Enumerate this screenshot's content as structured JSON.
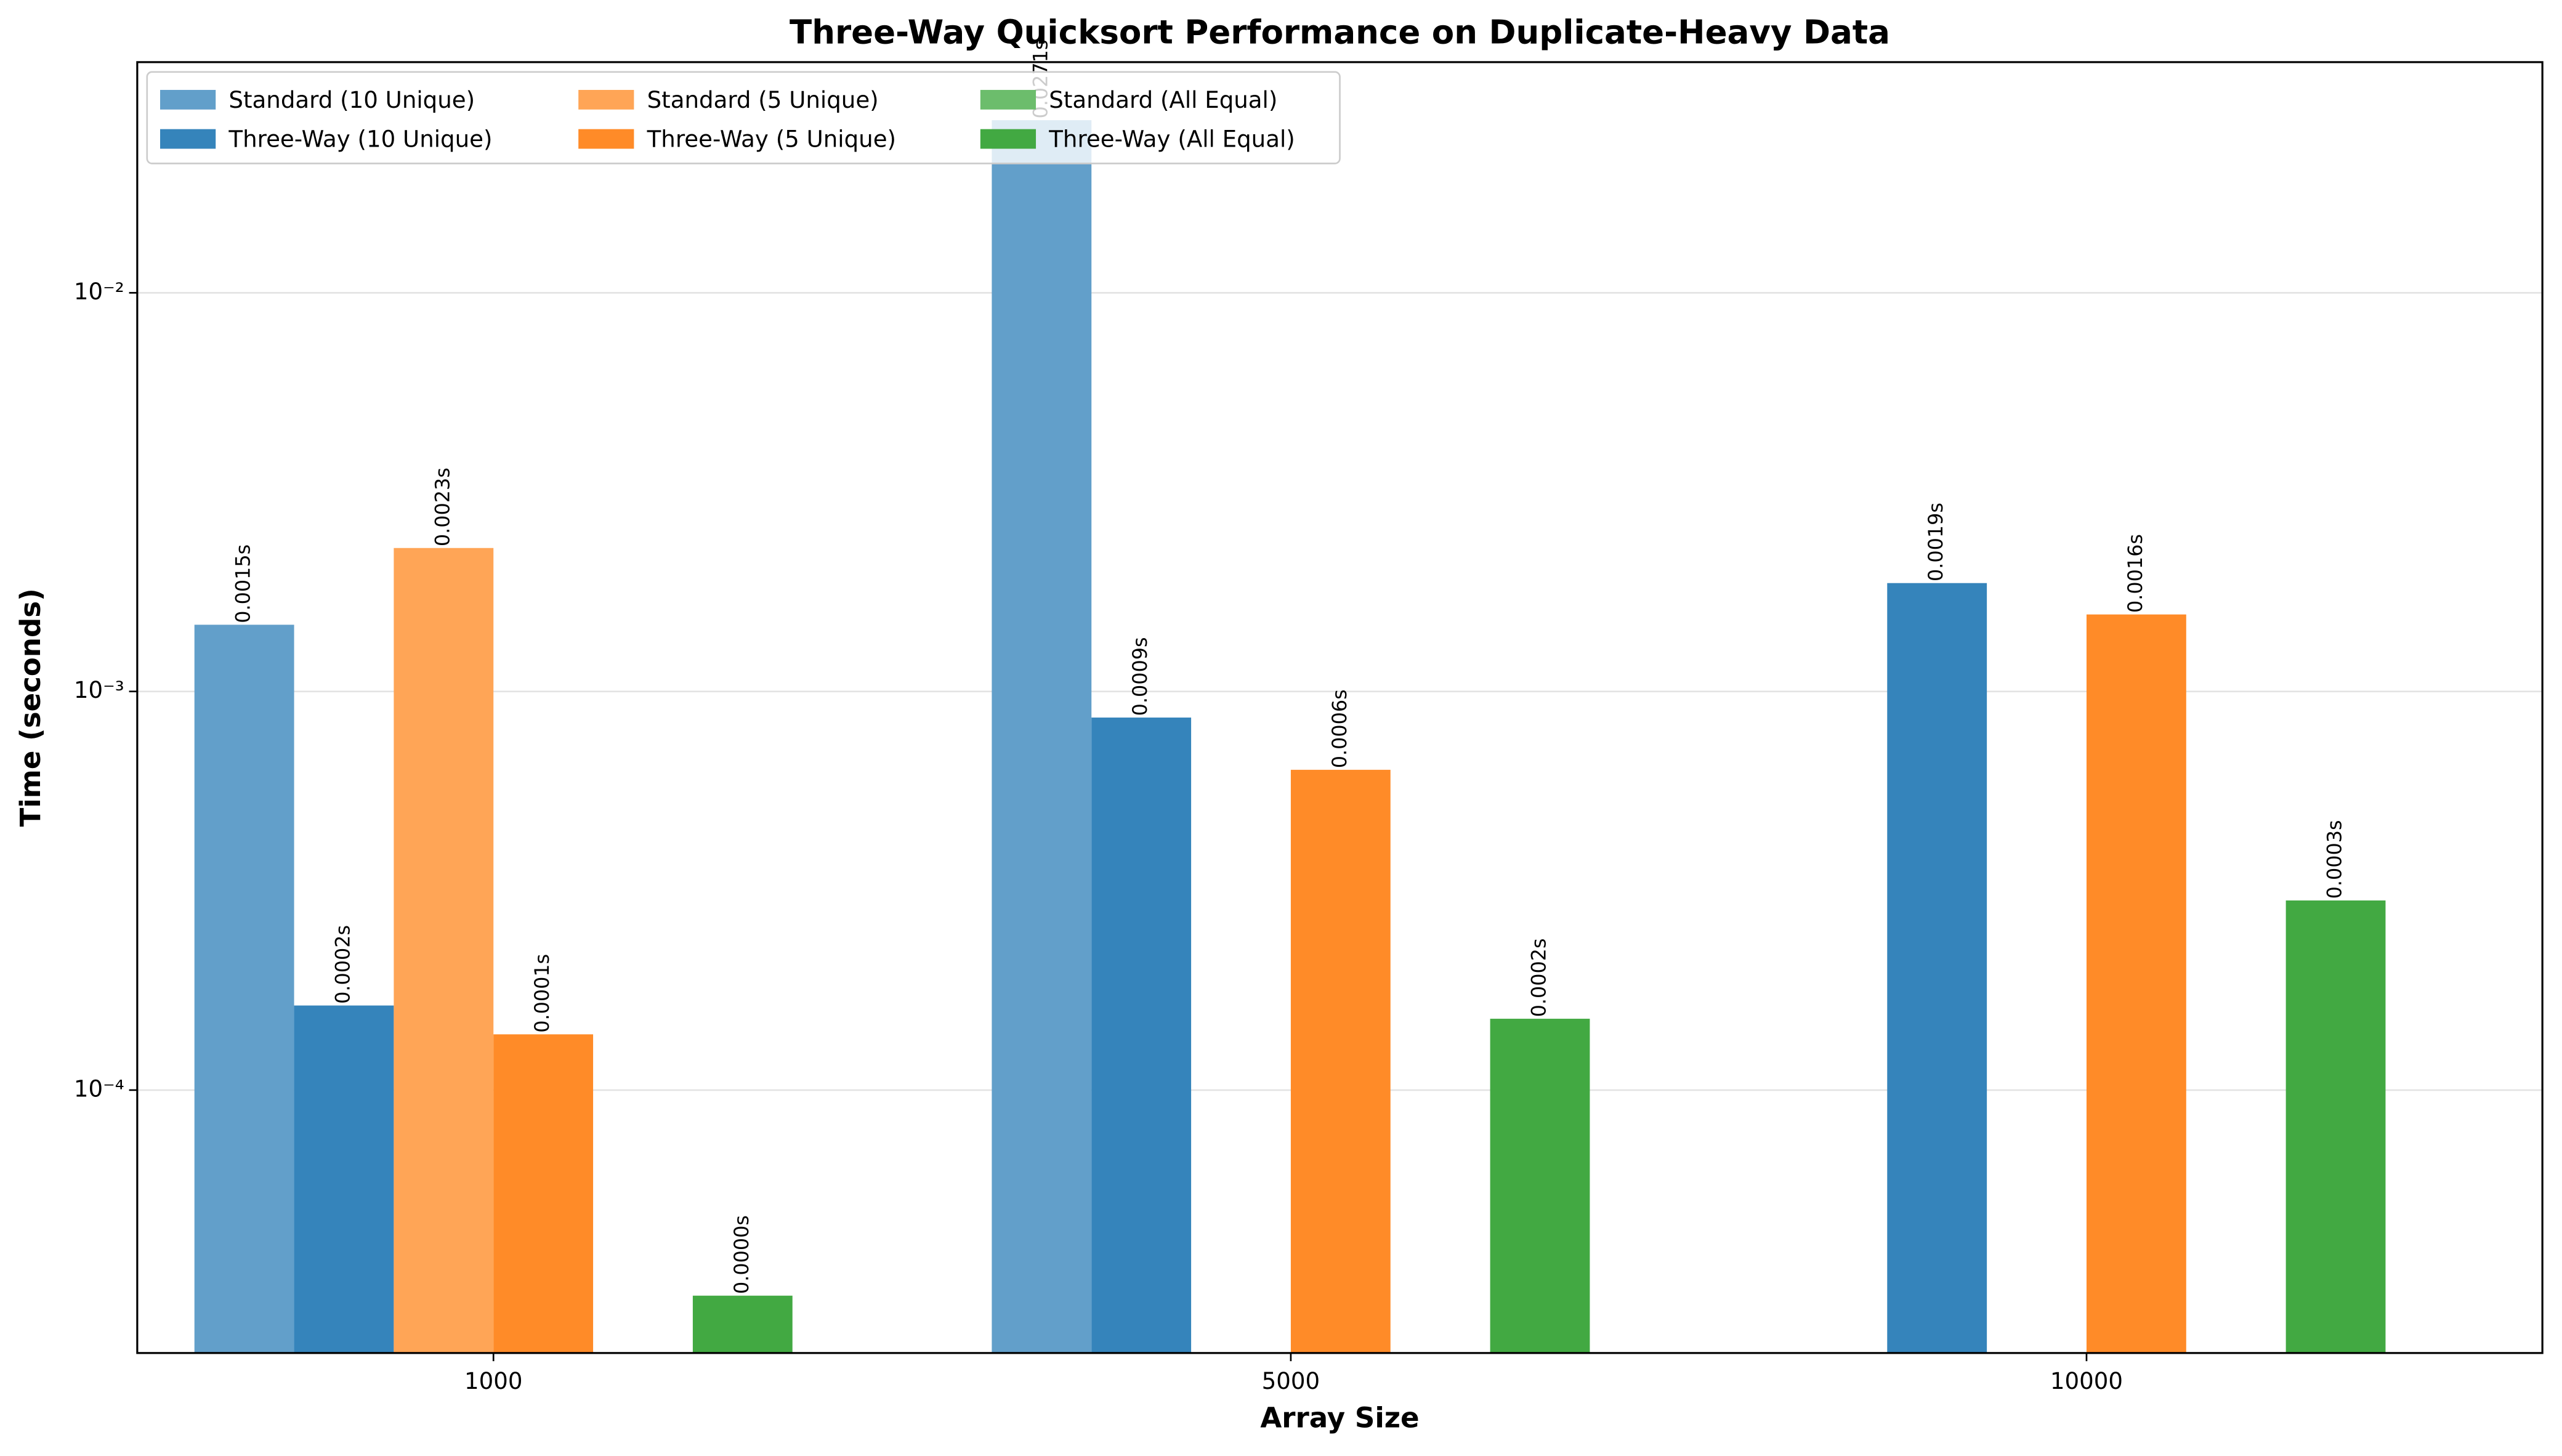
{
  "chart_data": {
    "type": "bar",
    "title": "Three-Way Quicksort Performance on Duplicate-Heavy Data",
    "x_label": "Array Size",
    "y_label": "Time (seconds)",
    "categories": [
      "1000",
      "5000",
      "10000"
    ],
    "log_scale_y": true,
    "grid": true,
    "legend_position": "upper left",
    "ylim": [
      2.19e-05,
      0.0379
    ],
    "yticks": [
      {
        "value": 0.0001,
        "label": "10⁻⁴"
      },
      {
        "value": 0.001,
        "label": "10⁻³"
      },
      {
        "value": 0.01,
        "label": "10⁻²"
      }
    ],
    "series": [
      {
        "name": "Standard (10 Unique)",
        "color": "#629fca",
        "values": [
          0.00147,
          0.0271,
          null
        ],
        "value_labels": [
          "0.0015s",
          "0.0271s",
          null
        ]
      },
      {
        "name": "Three-Way (10 Unique)",
        "color": "#3584bb",
        "values": [
          0.000163,
          0.00086,
          0.00187
        ],
        "value_labels": [
          "0.0002s",
          "0.0009s",
          "0.0019s"
        ]
      },
      {
        "name": "Standard (5 Unique)",
        "color": "#ffa556",
        "values": [
          0.00229,
          null,
          null
        ],
        "value_labels": [
          "0.0023s",
          null,
          null
        ]
      },
      {
        "name": "Three-Way (5 Unique)",
        "color": "#ff8b28",
        "values": [
          0.000138,
          0.000636,
          0.00156
        ],
        "value_labels": [
          "0.0001s",
          "0.0006s",
          "0.0016s"
        ]
      },
      {
        "name": "Standard (All Equal)",
        "color": "#6cbd6c",
        "values": [
          null,
          null,
          null
        ],
        "value_labels": [
          null,
          null,
          null
        ]
      },
      {
        "name": "Three-Way (All Equal)",
        "color": "#42a942",
        "values": [
          3.05e-05,
          0.000151,
          0.000299
        ],
        "value_labels": [
          "0.0000s",
          "0.0002s",
          "0.0003s"
        ]
      }
    ]
  }
}
